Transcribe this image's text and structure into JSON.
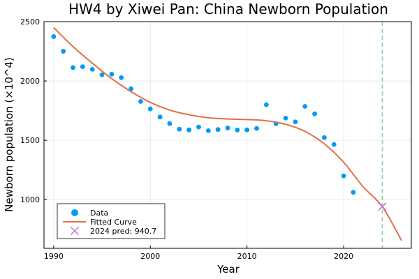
{
  "chart_data": {
    "type": "scatter",
    "title": "HW4 by Xiwei Pan: China Newborn Population",
    "xlabel": "Year",
    "ylabel": "Newborn population (×10^4)",
    "xlim": [
      1989,
      2027
    ],
    "ylim": [
      590,
      2500
    ],
    "xticks": [
      1990,
      2000,
      2010,
      2020
    ],
    "yticks": [
      1000,
      1500,
      2000,
      2500
    ],
    "grid": true,
    "legend_position": "bottom-left",
    "colors": {
      "data": "#009af9",
      "curve": "#e26f46",
      "prediction": "#c271d2",
      "reference_line": "#3da44d"
    },
    "series": [
      {
        "name": "Data",
        "kind": "scatter",
        "x": [
          1990,
          1991,
          1992,
          1993,
          1994,
          1995,
          1996,
          1997,
          1998,
          1999,
          2000,
          2001,
          2002,
          2003,
          2004,
          2005,
          2006,
          2007,
          2008,
          2009,
          2010,
          2011,
          2012,
          2013,
          2014,
          2015,
          2016,
          2017,
          2018,
          2019,
          2020,
          2021
        ],
        "y": [
          2374,
          2250,
          2113,
          2120,
          2098,
          2052,
          2057,
          2028,
          1934,
          1827,
          1765,
          1696,
          1641,
          1594,
          1588,
          1612,
          1581,
          1591,
          1604,
          1587,
          1588,
          1600,
          1800,
          1640,
          1687,
          1655,
          1786,
          1723,
          1523,
          1465,
          1200,
          1062
        ]
      },
      {
        "name": "Fitted Curve",
        "kind": "line",
        "x": [
          1990,
          1992,
          1994,
          1996,
          1998,
          2000,
          2002,
          2004,
          2006,
          2008,
          2010,
          2012,
          2014,
          2016,
          2018,
          2020,
          2022,
          2024,
          2026
        ],
        "y": [
          2450,
          2290,
          2150,
          2020,
          1910,
          1820,
          1755,
          1715,
          1690,
          1680,
          1675,
          1665,
          1635,
          1575,
          1470,
          1315,
          1110,
          940.7,
          655
        ]
      },
      {
        "name": "2024 pred: 940.7",
        "kind": "marker",
        "x": [
          2024
        ],
        "y": [
          940.7
        ]
      }
    ],
    "reference_line": {
      "orientation": "vertical",
      "x": 2024,
      "style": "dashed"
    }
  }
}
